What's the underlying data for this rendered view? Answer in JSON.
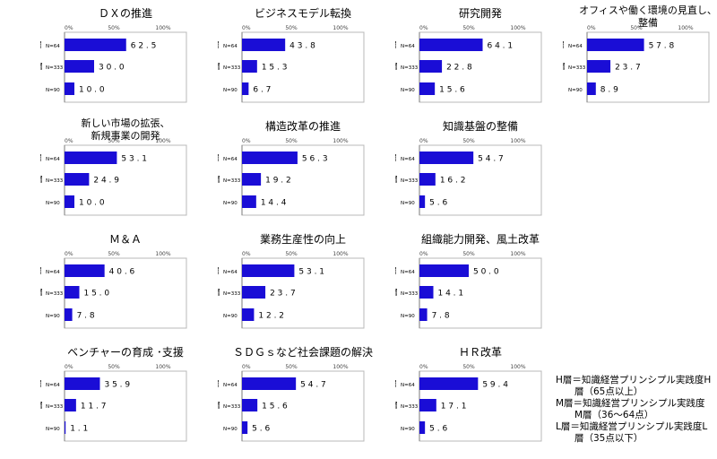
{
  "colors": {
    "bar": "#1a0dd6",
    "frame": "#b8b8b8"
  },
  "chart_data": [
    {
      "type": "bar",
      "title": "ＤＸの推進",
      "xlim": [
        0,
        100
      ],
      "ticks": [
        "0%",
        "50%",
        "100%"
      ],
      "categories": [
        {
          "tier": "H層",
          "n": "N=64"
        },
        {
          "tier": "M層",
          "n": "N=333"
        },
        {
          "tier": "L層",
          "n": "N=90"
        }
      ],
      "values": [
        62.5,
        30.0,
        10.0
      ],
      "labels": [
        "6 2 . 5",
        "3 0 . 0",
        "1 0 . 0"
      ]
    },
    {
      "type": "bar",
      "title": "ビジネスモデル転換",
      "xlim": [
        0,
        100
      ],
      "ticks": [
        "0%",
        "50%",
        "100%"
      ],
      "categories": [
        {
          "tier": "H層",
          "n": "N=64"
        },
        {
          "tier": "M層",
          "n": "N=333"
        },
        {
          "tier": "L層",
          "n": "N=90"
        }
      ],
      "values": [
        43.8,
        15.3,
        6.7
      ],
      "labels": [
        "4 3 . 8",
        "1 5 . 3",
        "6 . 7"
      ]
    },
    {
      "type": "bar",
      "title": "研究開発",
      "xlim": [
        0,
        100
      ],
      "ticks": [
        "0%",
        "50%",
        "100%"
      ],
      "categories": [
        {
          "tier": "H層",
          "n": "N=64"
        },
        {
          "tier": "M層",
          "n": "N=333"
        },
        {
          "tier": "L層",
          "n": "N=90"
        }
      ],
      "values": [
        64.1,
        22.8,
        15.6
      ],
      "labels": [
        "6 4 . 1",
        "2 2 . 8",
        "1 5 . 6"
      ]
    },
    {
      "type": "bar",
      "title": "オフィスや働く環境の見直し、\n整備",
      "xlim": [
        0,
        100
      ],
      "ticks": [
        "0%",
        "50%",
        "100%"
      ],
      "categories": [
        {
          "tier": "H層",
          "n": "N=64"
        },
        {
          "tier": "M層",
          "n": "N=333"
        },
        {
          "tier": "L層",
          "n": "N=90"
        }
      ],
      "values": [
        57.8,
        23.7,
        8.9
      ],
      "labels": [
        "5 7 . 8",
        "2 3 . 7",
        "8 . 9"
      ]
    },
    {
      "type": "bar",
      "title": "新しい市場の拡張、\n新規事業の開発",
      "xlim": [
        0,
        100
      ],
      "ticks": [
        "0%",
        "50%",
        "100%"
      ],
      "categories": [
        {
          "tier": "H層",
          "n": "N=64"
        },
        {
          "tier": "M層",
          "n": "N=333"
        },
        {
          "tier": "L層",
          "n": "N=90"
        }
      ],
      "values": [
        53.1,
        24.9,
        10.0
      ],
      "labels": [
        "5 3 . 1",
        "2 4 . 9",
        "1 0 . 0"
      ]
    },
    {
      "type": "bar",
      "title": "構造改革の推進",
      "xlim": [
        0,
        100
      ],
      "ticks": [
        "0%",
        "50%",
        "100%"
      ],
      "categories": [
        {
          "tier": "H層",
          "n": "N=64"
        },
        {
          "tier": "M層",
          "n": "N=333"
        },
        {
          "tier": "L層",
          "n": "N=90"
        }
      ],
      "values": [
        56.3,
        19.2,
        14.4
      ],
      "labels": [
        "5 6 . 3",
        "1 9 . 2",
        "1 4 . 4"
      ]
    },
    {
      "type": "bar",
      "title": "知識基盤の整備",
      "xlim": [
        0,
        100
      ],
      "ticks": [
        "0%",
        "50%",
        "100%"
      ],
      "categories": [
        {
          "tier": "H層",
          "n": "N=64"
        },
        {
          "tier": "M層",
          "n": "N=333"
        },
        {
          "tier": "L層",
          "n": "N=90"
        }
      ],
      "values": [
        54.7,
        16.2,
        5.6
      ],
      "labels": [
        "5 4 . 7",
        "1 6 . 2",
        "5 . 6"
      ]
    },
    {
      "type": "bar",
      "title": "Ｍ＆Ａ",
      "xlim": [
        0,
        100
      ],
      "ticks": [
        "0%",
        "50%",
        "100%"
      ],
      "categories": [
        {
          "tier": "H層",
          "n": "N=64"
        },
        {
          "tier": "M層",
          "n": "N=333"
        },
        {
          "tier": "L層",
          "n": "N=90"
        }
      ],
      "values": [
        40.6,
        15.0,
        7.8
      ],
      "labels": [
        "4 0 . 6",
        "1 5 . 0",
        "7 . 8"
      ]
    },
    {
      "type": "bar",
      "title": "業務生産性の向上",
      "xlim": [
        0,
        100
      ],
      "ticks": [
        "0%",
        "50%",
        "100%"
      ],
      "categories": [
        {
          "tier": "H層",
          "n": "N=64"
        },
        {
          "tier": "M層",
          "n": "N=333"
        },
        {
          "tier": "L層",
          "n": "N=90"
        }
      ],
      "values": [
        53.1,
        23.7,
        12.2
      ],
      "labels": [
        "5 3 . 1",
        "2 3 . 7",
        "1 2 . 2"
      ]
    },
    {
      "type": "bar",
      "title": "組織能力開発、風土改革",
      "xlim": [
        0,
        100
      ],
      "ticks": [
        "0%",
        "50%",
        "100%"
      ],
      "categories": [
        {
          "tier": "H層",
          "n": "N=64"
        },
        {
          "tier": "M層",
          "n": "N=333"
        },
        {
          "tier": "L層",
          "n": "N=90"
        }
      ],
      "values": [
        50.0,
        14.1,
        7.8
      ],
      "labels": [
        "5 0 . 0",
        "1 4 . 1",
        "7 . 8"
      ]
    },
    {
      "type": "bar",
      "title": "ベンチャーの育成 ･支援",
      "xlim": [
        0,
        100
      ],
      "ticks": [
        "0%",
        "50%",
        "100%"
      ],
      "categories": [
        {
          "tier": "H層",
          "n": "N=64"
        },
        {
          "tier": "M層",
          "n": "N=333"
        },
        {
          "tier": "L層",
          "n": "N=90"
        }
      ],
      "values": [
        35.9,
        11.7,
        1.1
      ],
      "labels": [
        "3 5 . 9",
        "1 1 . 7",
        "1 . 1"
      ]
    },
    {
      "type": "bar",
      "title": "ＳＤＧｓなど社会課題の解決",
      "xlim": [
        0,
        100
      ],
      "ticks": [
        "0%",
        "50%",
        "100%"
      ],
      "categories": [
        {
          "tier": "H層",
          "n": "N=64"
        },
        {
          "tier": "M層",
          "n": "N=333"
        },
        {
          "tier": "L層",
          "n": "N=90"
        }
      ],
      "values": [
        54.7,
        15.6,
        5.6
      ],
      "labels": [
        "5 4 . 7",
        "1 5 . 6",
        "5 . 6"
      ]
    },
    {
      "type": "bar",
      "title": "ＨＲ改革",
      "xlim": [
        0,
        100
      ],
      "ticks": [
        "0%",
        "50%",
        "100%"
      ],
      "categories": [
        {
          "tier": "H層",
          "n": "N=64"
        },
        {
          "tier": "M層",
          "n": "N=333"
        },
        {
          "tier": "L層",
          "n": "N=90"
        }
      ],
      "values": [
        59.4,
        17.1,
        5.6
      ],
      "labels": [
        "5 9 . 4",
        "1 7 . 1",
        "5 . 6"
      ]
    }
  ],
  "legend": {
    "h": "H層＝知識経営プリンシプル実践度H\n　　層（65点以上）",
    "m": "M層＝知識経営プリンシプル実践度\n　　M層（36～64点）",
    "l": "L層＝知識経営プリンシプル実践度L\n　　層（35点以下）"
  }
}
